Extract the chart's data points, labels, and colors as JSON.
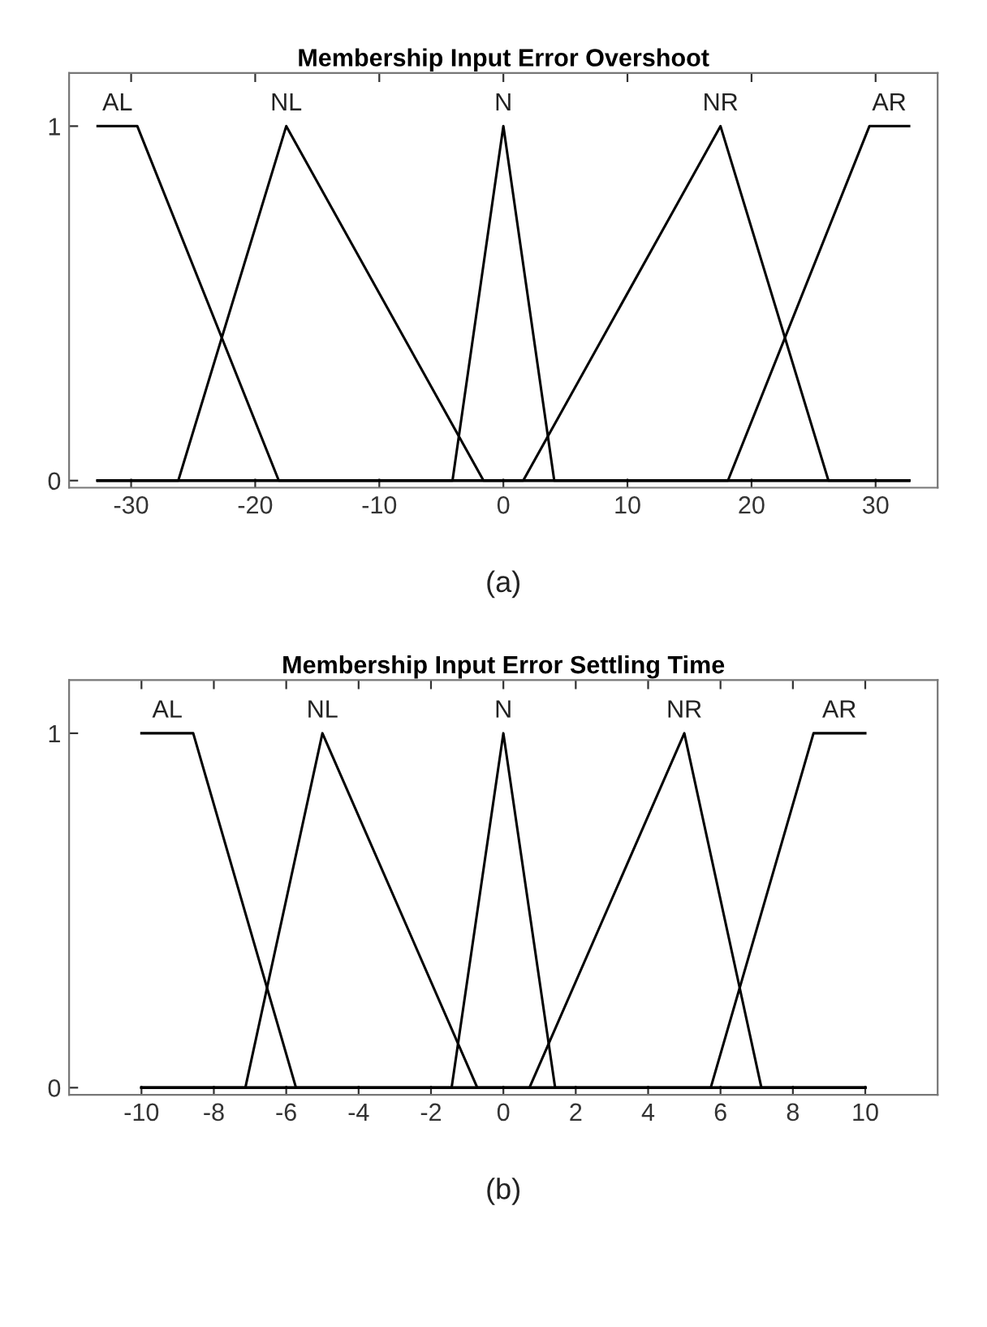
{
  "chart_data": [
    {
      "type": "line",
      "title": "Membership Input Error Overshoot",
      "annotations": [
        "(a)"
      ],
      "xlim": [
        -35,
        35
      ],
      "xticks": [
        -30,
        -20,
        -10,
        0,
        10,
        20,
        30
      ],
      "ylim": [
        -0.02,
        1.15
      ],
      "yticks": [
        0,
        1
      ],
      "grid": false,
      "marker": "none",
      "line_style": "solid",
      "series": [
        {
          "name": "AL",
          "color": "#000000",
          "x": [
            -32.7,
            -29.5,
            -18.1,
            32.7
          ],
          "values": [
            1,
            1,
            0,
            0
          ]
        },
        {
          "name": "NL",
          "color": "#000000",
          "x": [
            -32.7,
            -26.2,
            -17.5,
            -1.6,
            32.7
          ],
          "values": [
            0,
            0,
            1,
            0,
            0
          ]
        },
        {
          "name": "N",
          "color": "#000000",
          "x": [
            -32.7,
            -4.1,
            0,
            4.1,
            32.7
          ],
          "values": [
            0,
            0,
            1,
            0,
            0
          ]
        },
        {
          "name": "NR",
          "color": "#000000",
          "x": [
            -32.7,
            1.6,
            17.5,
            26.2,
            32.7
          ],
          "values": [
            0,
            0,
            1,
            0,
            0
          ]
        },
        {
          "name": "AR",
          "color": "#000000",
          "x": [
            -32.7,
            18.1,
            29.5,
            32.7
          ],
          "values": [
            0,
            0,
            1,
            1
          ]
        }
      ]
    },
    {
      "type": "line",
      "title": "Membership Input Error Settling Time",
      "annotations": [
        "(b)"
      ],
      "xlim": [
        -12,
        12
      ],
      "xticks": [
        -10,
        -8,
        -6,
        -4,
        -2,
        0,
        2,
        4,
        6,
        8,
        10
      ],
      "ylim": [
        -0.02,
        1.15
      ],
      "yticks": [
        0,
        1
      ],
      "grid": false,
      "marker": "none",
      "line_style": "solid",
      "series": [
        {
          "name": "AL",
          "color": "#000000",
          "x": [
            -10,
            -8.57,
            -5.73,
            10
          ],
          "values": [
            1,
            1,
            0,
            0
          ]
        },
        {
          "name": "NL",
          "color": "#000000",
          "x": [
            -10,
            -7.13,
            -5,
            -0.72,
            10
          ],
          "values": [
            0,
            0,
            1,
            0,
            0
          ]
        },
        {
          "name": "N",
          "color": "#000000",
          "x": [
            -10,
            -1.43,
            0,
            1.43,
            10
          ],
          "values": [
            0,
            0,
            1,
            0,
            0
          ]
        },
        {
          "name": "NR",
          "color": "#000000",
          "x": [
            -10,
            0.72,
            5,
            7.13,
            10
          ],
          "values": [
            0,
            0,
            1,
            0,
            0
          ]
        },
        {
          "name": "AR",
          "color": "#000000",
          "x": [
            -10,
            5.73,
            8.57,
            10
          ],
          "values": [
            0,
            0,
            1,
            1
          ]
        }
      ]
    }
  ]
}
